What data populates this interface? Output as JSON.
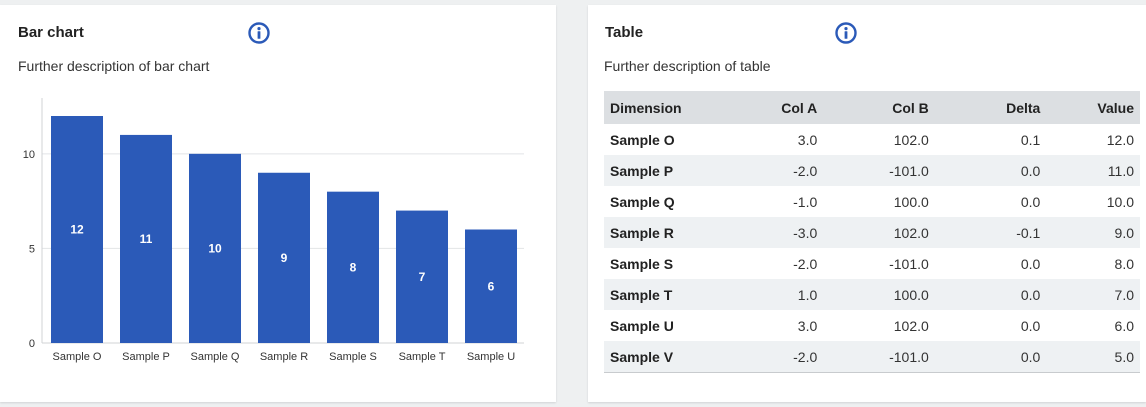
{
  "left_card": {
    "title": "Bar chart",
    "description": "Further description of bar chart",
    "info_icon": "info-icon"
  },
  "right_card": {
    "title": "Table",
    "description": "Further description of table",
    "info_icon": "info-icon"
  },
  "colors": {
    "accent": "#2b5ab8",
    "bar": "#2b5ab8",
    "header_bg": "#dcdfe2",
    "stripe_bg": "#eef1f3"
  },
  "chart_data": {
    "type": "bar",
    "categories": [
      "Sample O",
      "Sample P",
      "Sample Q",
      "Sample R",
      "Sample S",
      "Sample T",
      "Sample U"
    ],
    "values": [
      12,
      11,
      10,
      9,
      8,
      7,
      6
    ],
    "data_labels": [
      "12",
      "11",
      "10",
      "9",
      "8",
      "7",
      "6"
    ],
    "yticks": [
      0,
      5,
      10
    ],
    "ylim": [
      0,
      13
    ],
    "grid": true,
    "legend": "none"
  },
  "table": {
    "columns": [
      "Dimension",
      "Col A",
      "Col B",
      "Delta",
      "Value"
    ],
    "rows": [
      [
        "Sample O",
        "3.0",
        "102.0",
        "0.1",
        "12.0"
      ],
      [
        "Sample P",
        "-2.0",
        "-101.0",
        "0.0",
        "11.0"
      ],
      [
        "Sample Q",
        "-1.0",
        "100.0",
        "0.0",
        "10.0"
      ],
      [
        "Sample R",
        "-3.0",
        "102.0",
        "-0.1",
        "9.0"
      ],
      [
        "Sample S",
        "-2.0",
        "-101.0",
        "0.0",
        "8.0"
      ],
      [
        "Sample T",
        "1.0",
        "100.0",
        "0.0",
        "7.0"
      ],
      [
        "Sample U",
        "3.0",
        "102.0",
        "0.0",
        "6.0"
      ],
      [
        "Sample V",
        "-2.0",
        "-101.0",
        "0.0",
        "5.0"
      ]
    ]
  }
}
